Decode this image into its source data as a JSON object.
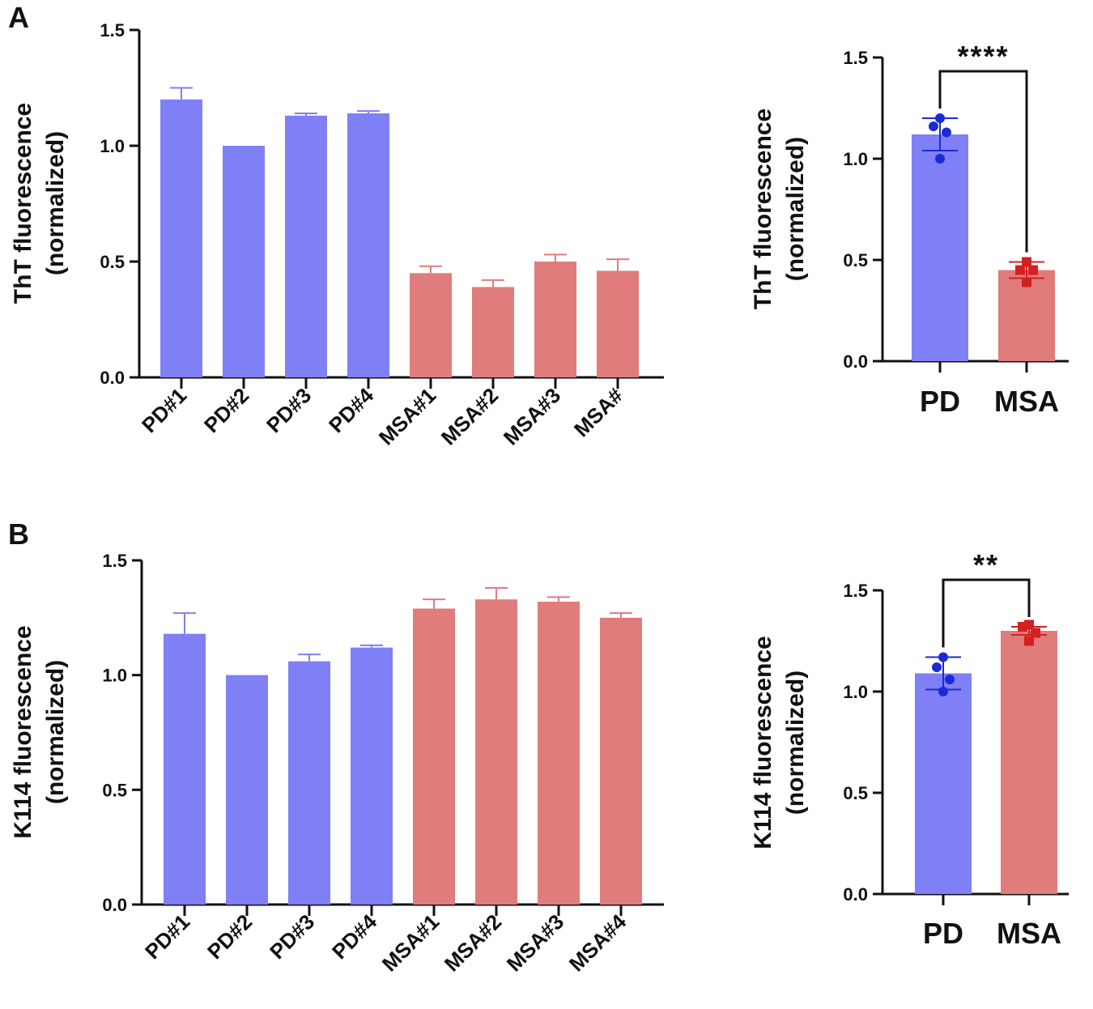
{
  "figure": {
    "panel_a_label": "A",
    "panel_b_label": "B"
  },
  "colors": {
    "pd": "#7f7ff6",
    "msa": "#e07c7c",
    "pd_point": "#1a2bd6",
    "msa_point": "#d42020",
    "axis": "#111111"
  },
  "chart_data": [
    {
      "id": "A-left",
      "type": "bar",
      "ylabel_line1": "ThT fluorescence",
      "ylabel_line2": "(normalized)",
      "ylim": [
        0,
        1.5
      ],
      "yticks": [
        "0.0",
        "0.5",
        "1.0",
        "1.5"
      ],
      "yticks_values": [
        0,
        0.5,
        1.0,
        1.5
      ],
      "categories": [
        "PD#1",
        "PD#2",
        "PD#3",
        "PD#4",
        "MSA#1",
        "MSA#2",
        "MSA#3",
        "MSA#"
      ],
      "values": [
        1.2,
        1.0,
        1.13,
        1.14,
        0.45,
        0.39,
        0.5,
        0.46
      ],
      "errors": [
        0.05,
        0,
        0.01,
        0.01,
        0.03,
        0.03,
        0.03,
        0.05
      ],
      "groups": [
        "pd",
        "pd",
        "pd",
        "pd",
        "msa",
        "msa",
        "msa",
        "msa"
      ]
    },
    {
      "id": "A-right",
      "type": "bar",
      "ylabel_line1": "ThT fluorescence",
      "ylabel_line2": "(normalized)",
      "ylim": [
        0,
        1.5
      ],
      "yticks": [
        "0.0",
        "0.5",
        "1.0",
        "1.5"
      ],
      "yticks_values": [
        0,
        0.5,
        1.0,
        1.5
      ],
      "categories": [
        "PD",
        "MSA"
      ],
      "values": [
        1.12,
        0.45
      ],
      "errors": [
        0.08,
        0.04
      ],
      "points": [
        [
          1.2,
          1.16,
          1.13,
          1.0
        ],
        [
          0.49,
          0.45,
          0.45,
          0.39
        ]
      ],
      "significance": "****",
      "groups": [
        "pd",
        "msa"
      ]
    },
    {
      "id": "B-left",
      "type": "bar",
      "ylabel_line1": "K114 fluorescence",
      "ylabel_line2": "(normalized)",
      "ylim": [
        0,
        1.5
      ],
      "yticks": [
        "0.0",
        "0.5",
        "1.0",
        "1.5"
      ],
      "yticks_values": [
        0,
        0.5,
        1.0,
        1.5
      ],
      "categories": [
        "PD#1",
        "PD#2",
        "PD#3",
        "PD#4",
        "MSA#1",
        "MSA#2",
        "MSA#3",
        "MSA#4"
      ],
      "values": [
        1.18,
        1.0,
        1.06,
        1.12,
        1.29,
        1.33,
        1.32,
        1.25
      ],
      "errors": [
        0.09,
        0,
        0.03,
        0.01,
        0.04,
        0.05,
        0.02,
        0.02
      ],
      "groups": [
        "pd",
        "pd",
        "pd",
        "pd",
        "msa",
        "msa",
        "msa",
        "msa"
      ]
    },
    {
      "id": "B-right",
      "type": "bar",
      "ylabel_line1": "K114 fluorescence",
      "ylabel_line2": "(normalized)",
      "ylim": [
        0,
        1.5
      ],
      "yticks": [
        "0.0",
        "0.5",
        "1.0",
        "1.5"
      ],
      "yticks_values": [
        0,
        0.5,
        1.0,
        1.5
      ],
      "categories": [
        "PD",
        "MSA"
      ],
      "values": [
        1.09,
        1.3
      ],
      "errors": [
        0.08,
        0.02
      ],
      "points": [
        [
          1.17,
          1.12,
          1.06,
          1.0
        ],
        [
          1.33,
          1.32,
          1.29,
          1.25
        ]
      ],
      "significance": "**",
      "groups": [
        "pd",
        "msa"
      ]
    }
  ]
}
